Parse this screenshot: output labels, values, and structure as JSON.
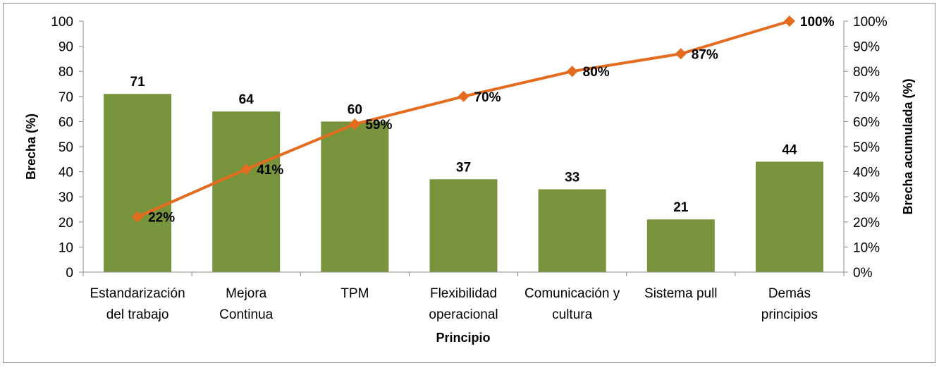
{
  "chart_data": {
    "type": "bar",
    "title": "",
    "xlabel": "Principio",
    "ylabel": "Brecha (%)",
    "y2label": "Brecha acumulada (%)",
    "categories": [
      [
        "Estandarización",
        "del trabajo"
      ],
      [
        "Mejora",
        "Continua"
      ],
      [
        "TPM"
      ],
      [
        "Flexibilidad",
        "operacional"
      ],
      [
        "Comunicación y",
        "cultura"
      ],
      [
        "Sistema pull"
      ],
      [
        "Demás",
        "principios"
      ]
    ],
    "series": [
      {
        "type": "bar",
        "axis": "left",
        "color": "#77933c",
        "values": [
          71,
          64,
          60,
          37,
          33,
          21,
          44
        ],
        "labels": [
          "71",
          "64",
          "60",
          "37",
          "33",
          "21",
          "44"
        ]
      },
      {
        "type": "line",
        "axis": "right",
        "color": "#e46c1f",
        "marker": "diamond",
        "values": [
          22,
          41,
          59,
          70,
          80,
          87,
          100
        ],
        "labels": [
          "22%",
          "41%",
          "59%",
          "70%",
          "80%",
          "87%",
          "100%"
        ]
      }
    ],
    "ylim": [
      0,
      100
    ],
    "yticks": [
      "0",
      "10",
      "20",
      "30",
      "40",
      "50",
      "60",
      "70",
      "80",
      "90",
      "100"
    ],
    "y2lim": [
      0,
      100
    ],
    "y2ticks": [
      "0%",
      "10%",
      "20%",
      "30%",
      "40%",
      "50%",
      "60%",
      "70%",
      "80%",
      "90%",
      "100%"
    ],
    "grid": false,
    "legend": "none"
  }
}
